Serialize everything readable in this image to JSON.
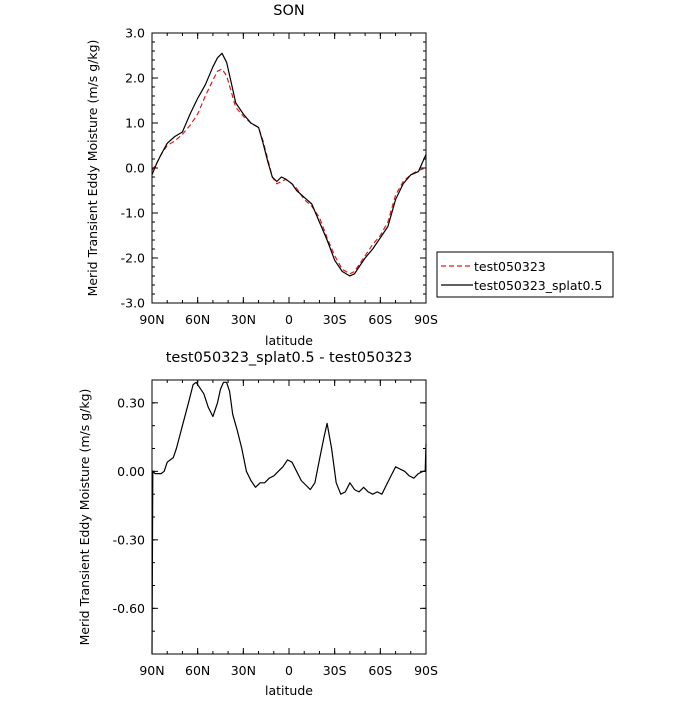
{
  "chart_data": [
    {
      "type": "line",
      "title": "SON",
      "xlabel": "latitude",
      "ylabel": "Merid Transient Eddy Moisture (m/s g/kg)",
      "xlim": [
        90,
        -90
      ],
      "ylim": [
        -3.0,
        3.0
      ],
      "x_ticks": [
        90,
        60,
        30,
        0,
        -30,
        -60,
        -90
      ],
      "x_tick_labels": [
        "90N",
        "60N",
        "30N",
        "0",
        "30S",
        "60S",
        "90S"
      ],
      "y_ticks": [
        -3.0,
        -2.0,
        -1.0,
        0.0,
        1.0,
        2.0,
        3.0
      ],
      "y_tick_labels": [
        "-3.0",
        "-2.0",
        "-1.0",
        "0.0",
        "1.0",
        "2.0",
        "3.0"
      ],
      "grid": false,
      "legend_position": "right",
      "series": [
        {
          "name": "test050323",
          "color": "#e41a1c",
          "dash": "dashed",
          "x": [
            90,
            87,
            84,
            80,
            75,
            70,
            65,
            60,
            55,
            50,
            47,
            44,
            41,
            38,
            35,
            30,
            25,
            20,
            17,
            14,
            11,
            8,
            5,
            2,
            -2,
            -5,
            -10,
            -15,
            -20,
            -25,
            -30,
            -35,
            -40,
            -43,
            -46,
            -50,
            -55,
            -60,
            -65,
            -70,
            -75,
            -80,
            -85,
            -90
          ],
          "y": [
            -0.05,
            0.1,
            0.3,
            0.5,
            0.6,
            0.75,
            0.95,
            1.2,
            1.6,
            1.95,
            2.15,
            2.2,
            2.05,
            1.7,
            1.35,
            1.15,
            1.0,
            0.9,
            0.6,
            0.2,
            -0.2,
            -0.35,
            -0.3,
            -0.25,
            -0.35,
            -0.45,
            -0.7,
            -0.85,
            -1.1,
            -1.55,
            -1.95,
            -2.25,
            -2.35,
            -2.3,
            -2.15,
            -1.95,
            -1.7,
            -1.5,
            -1.2,
            -0.6,
            -0.3,
            -0.15,
            -0.05,
            0.0
          ]
        },
        {
          "name": "test050323_splat0.5",
          "color": "#000000",
          "dash": "solid",
          "x": [
            90,
            87,
            84,
            80,
            75,
            70,
            65,
            60,
            55,
            50,
            47,
            44,
            41,
            38,
            35,
            30,
            25,
            20,
            17,
            14,
            11,
            8,
            5,
            2,
            -2,
            -5,
            -10,
            -15,
            -20,
            -25,
            -30,
            -35,
            -40,
            -43,
            -46,
            -50,
            -55,
            -60,
            -65,
            -70,
            -75,
            -80,
            -85,
            -90
          ],
          "y": [
            -0.15,
            0.1,
            0.3,
            0.55,
            0.7,
            0.8,
            1.2,
            1.55,
            1.85,
            2.25,
            2.45,
            2.55,
            2.35,
            1.9,
            1.45,
            1.2,
            1.0,
            0.9,
            0.55,
            0.15,
            -0.2,
            -0.3,
            -0.2,
            -0.25,
            -0.35,
            -0.5,
            -0.65,
            -0.8,
            -1.2,
            -1.6,
            -2.05,
            -2.3,
            -2.4,
            -2.35,
            -2.2,
            -2.0,
            -1.8,
            -1.55,
            -1.3,
            -0.7,
            -0.35,
            -0.15,
            -0.08,
            0.3
          ]
        }
      ]
    },
    {
      "type": "line",
      "title": "test050323_splat0.5 - test050323",
      "xlabel": "latitude",
      "ylabel": "Merid Transient Eddy Moisture (m/s g/kg)",
      "xlim": [
        90,
        -90
      ],
      "ylim": [
        -0.8,
        0.4
      ],
      "x_ticks": [
        90,
        60,
        30,
        0,
        -30,
        -60,
        -90
      ],
      "x_tick_labels": [
        "90N",
        "60N",
        "30N",
        "0",
        "30S",
        "60S",
        "90S"
      ],
      "y_ticks": [
        -0.6,
        -0.3,
        0.0,
        0.3
      ],
      "y_tick_labels": [
        "-0.60",
        "-0.30",
        "0.00",
        "0.30"
      ],
      "grid": false,
      "series": [
        {
          "color": "#000000",
          "dash": "solid",
          "x": [
            90,
            89.5,
            88,
            86,
            84,
            82,
            80,
            78,
            76,
            74,
            72,
            70,
            66,
            63,
            61,
            59,
            56,
            53,
            50,
            47,
            45,
            43,
            41,
            39,
            37,
            34,
            31,
            28,
            25,
            22,
            19,
            16,
            13,
            10,
            7,
            4,
            1,
            -2,
            -5,
            -8,
            -11,
            -14,
            -17,
            -20,
            -23,
            -25,
            -28,
            -31,
            -34,
            -37,
            -40,
            -43,
            -46,
            -49,
            -52,
            -55,
            -58,
            -61,
            -64,
            -67,
            -70,
            -73,
            -76,
            -79,
            -82,
            -85,
            -88,
            -89.5,
            -90
          ],
          "y": [
            -0.8,
            0.0,
            -0.01,
            -0.01,
            -0.01,
            0.0,
            0.04,
            0.05,
            0.06,
            0.1,
            0.15,
            0.2,
            0.3,
            0.38,
            0.39,
            0.37,
            0.34,
            0.28,
            0.24,
            0.3,
            0.36,
            0.39,
            0.39,
            0.35,
            0.25,
            0.18,
            0.1,
            0.0,
            -0.04,
            -0.07,
            -0.05,
            -0.05,
            -0.03,
            -0.02,
            0.0,
            0.02,
            0.05,
            0.04,
            0.0,
            -0.04,
            -0.06,
            -0.08,
            -0.05,
            0.05,
            0.15,
            0.21,
            0.1,
            -0.05,
            -0.1,
            -0.09,
            -0.05,
            -0.08,
            -0.09,
            -0.07,
            -0.09,
            -0.1,
            -0.09,
            -0.1,
            -0.06,
            -0.02,
            0.02,
            0.01,
            0.0,
            -0.02,
            -0.03,
            -0.01,
            0.0,
            0.0,
            0.12
          ]
        }
      ]
    }
  ]
}
